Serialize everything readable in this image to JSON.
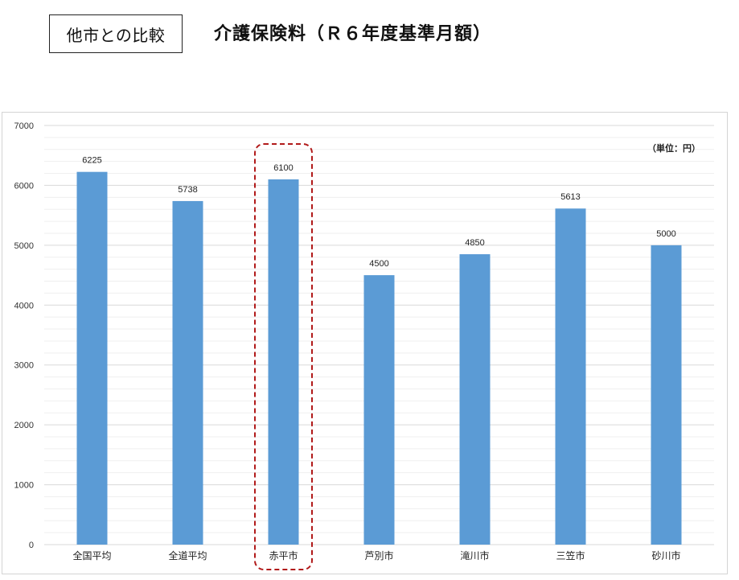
{
  "compare_label": "他市との比較",
  "title": "介護保険料（Ｒ６年度基準月額）",
  "unit_label": "（単位：円）",
  "highlight_category": "赤平市",
  "colors": {
    "bar": "#5b9bd5",
    "highlight_border": "#b11a1a",
    "gridline": "#d9d9d9",
    "minor_gridline": "#efefef"
  },
  "chart_data": {
    "type": "bar",
    "categories": [
      "全国平均",
      "全道平均",
      "赤平市",
      "芦別市",
      "滝川市",
      "三笠市",
      "砂川市"
    ],
    "values": [
      6225,
      5738,
      6100,
      4500,
      4850,
      5613,
      5000
    ],
    "data_labels": [
      "6225",
      "5738",
      "6100",
      "4500",
      "4850",
      "5613",
      "5000"
    ],
    "ylim": [
      0,
      7000
    ],
    "yticks": [
      0,
      1000,
      2000,
      3000,
      4000,
      5000,
      6000,
      7000
    ],
    "ytick_labels": [
      "0",
      "1000",
      "2000",
      "3000",
      "4000",
      "5000",
      "6000",
      "7000"
    ],
    "grid": true,
    "title": "",
    "xlabel": "",
    "ylabel": ""
  }
}
